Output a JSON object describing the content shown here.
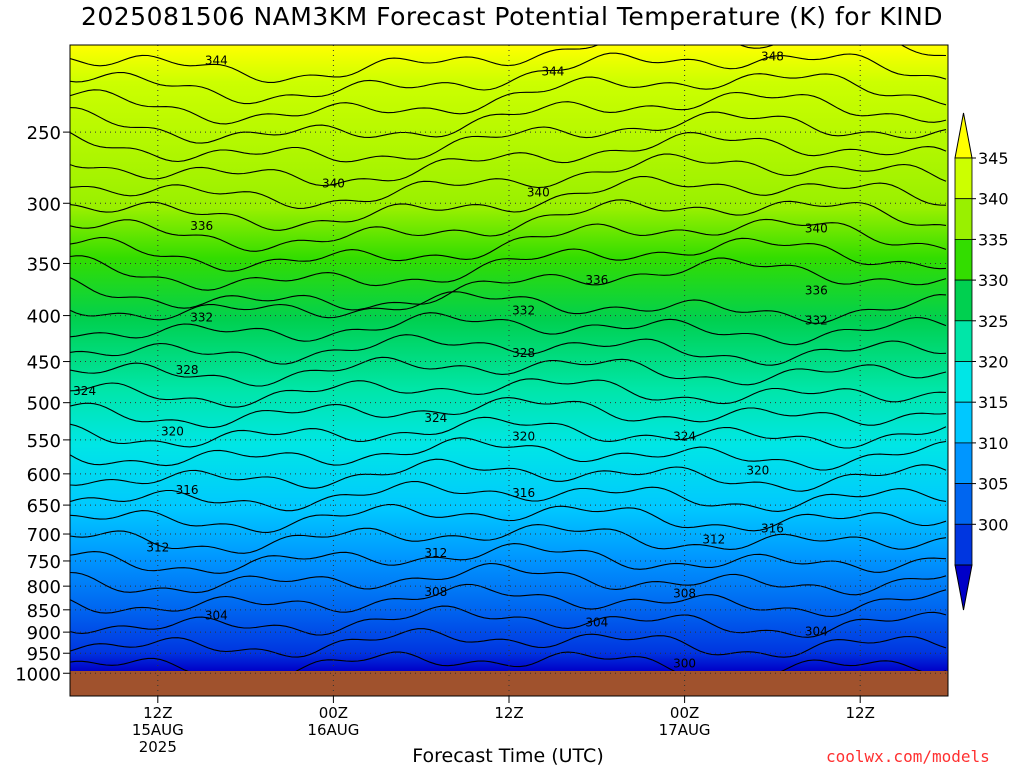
{
  "chart_data": {
    "type": "heatmap",
    "title": "2025081506 NAM3KM Forecast Potential Temperature (K) for KIND",
    "xlabel": "Forecast Time (UTC)",
    "ylabel": "",
    "credit": "coolwx.com/models",
    "y_axis": {
      "scale": "log",
      "units": "hPa",
      "range": [
        1000,
        200
      ],
      "ticks": [
        250,
        300,
        350,
        400,
        450,
        500,
        550,
        600,
        650,
        700,
        750,
        800,
        850,
        900,
        950,
        1000
      ]
    },
    "x_axis": {
      "range": [
        "2025-08-15 06Z",
        "2025-08-17 18Z"
      ],
      "ticks": [
        {
          "time": "2025-08-15 12Z",
          "label": [
            "12Z",
            "15AUG",
            "2025"
          ]
        },
        {
          "time": "2025-08-16 00Z",
          "label": [
            "00Z",
            "16AUG"
          ]
        },
        {
          "time": "2025-08-16 12Z",
          "label": [
            "12Z"
          ]
        },
        {
          "time": "2025-08-17 00Z",
          "label": [
            "00Z",
            "17AUG"
          ]
        },
        {
          "time": "2025-08-17 12Z",
          "label": [
            "12Z"
          ]
        }
      ]
    },
    "grid": true,
    "colorbar": {
      "labels": [
        345,
        340,
        335,
        330,
        325,
        320,
        315,
        310,
        305,
        300
      ],
      "colors": [
        "#ffff00",
        "#ccff00",
        "#99f000",
        "#33dd00",
        "#00d050",
        "#00e6a8",
        "#00e6e6",
        "#00c8ff",
        "#0096ff",
        "#0066f0",
        "#0036e0",
        "#0000c8"
      ],
      "placement": "right"
    },
    "contour_interval": 2,
    "contour_labels": [
      {
        "time": "2025-08-15 16Z",
        "p": 208,
        "value": 344
      },
      {
        "time": "2025-08-16 15Z",
        "p": 214,
        "value": 344
      },
      {
        "time": "2025-08-17 06Z",
        "p": 206,
        "value": 348
      },
      {
        "time": "2025-08-16 00Z",
        "p": 285,
        "value": 340
      },
      {
        "time": "2025-08-16 14Z",
        "p": 292,
        "value": 340
      },
      {
        "time": "2025-08-17 09Z",
        "p": 320,
        "value": 340
      },
      {
        "time": "2025-08-15 15Z",
        "p": 318,
        "value": 336
      },
      {
        "time": "2025-08-16 18Z",
        "p": 365,
        "value": 336
      },
      {
        "time": "2025-08-17 09Z",
        "p": 375,
        "value": 336
      },
      {
        "time": "2025-08-15 15Z",
        "p": 402,
        "value": 332
      },
      {
        "time": "2025-08-16 13Z",
        "p": 395,
        "value": 332
      },
      {
        "time": "2025-08-17 09Z",
        "p": 405,
        "value": 332
      },
      {
        "time": "2025-08-15 14Z",
        "p": 460,
        "value": 328
      },
      {
        "time": "2025-08-16 13Z",
        "p": 440,
        "value": 328
      },
      {
        "time": "2025-08-15 07Z",
        "p": 485,
        "value": 324
      },
      {
        "time": "2025-08-16 07Z",
        "p": 520,
        "value": 324
      },
      {
        "time": "2025-08-17 00Z",
        "p": 545,
        "value": 324
      },
      {
        "time": "2025-08-15 13Z",
        "p": 538,
        "value": 320
      },
      {
        "time": "2025-08-16 13Z",
        "p": 545,
        "value": 320
      },
      {
        "time": "2025-08-17 05Z",
        "p": 595,
        "value": 320
      },
      {
        "time": "2025-08-15 14Z",
        "p": 625,
        "value": 316
      },
      {
        "time": "2025-08-16 13Z",
        "p": 630,
        "value": 316
      },
      {
        "time": "2025-08-17 06Z",
        "p": 690,
        "value": 316
      },
      {
        "time": "2025-08-15 12Z",
        "p": 725,
        "value": 312
      },
      {
        "time": "2025-08-16 07Z",
        "p": 735,
        "value": 312
      },
      {
        "time": "2025-08-17 02Z",
        "p": 710,
        "value": 312
      },
      {
        "time": "2025-08-16 07Z",
        "p": 812,
        "value": 308
      },
      {
        "time": "2025-08-17 00Z",
        "p": 815,
        "value": 308
      },
      {
        "time": "2025-08-15 16Z",
        "p": 862,
        "value": 304
      },
      {
        "time": "2025-08-16 18Z",
        "p": 878,
        "value": 304
      },
      {
        "time": "2025-08-17 09Z",
        "p": 898,
        "value": 304
      },
      {
        "time": "2025-08-17 00Z",
        "p": 975,
        "value": 300
      }
    ]
  }
}
